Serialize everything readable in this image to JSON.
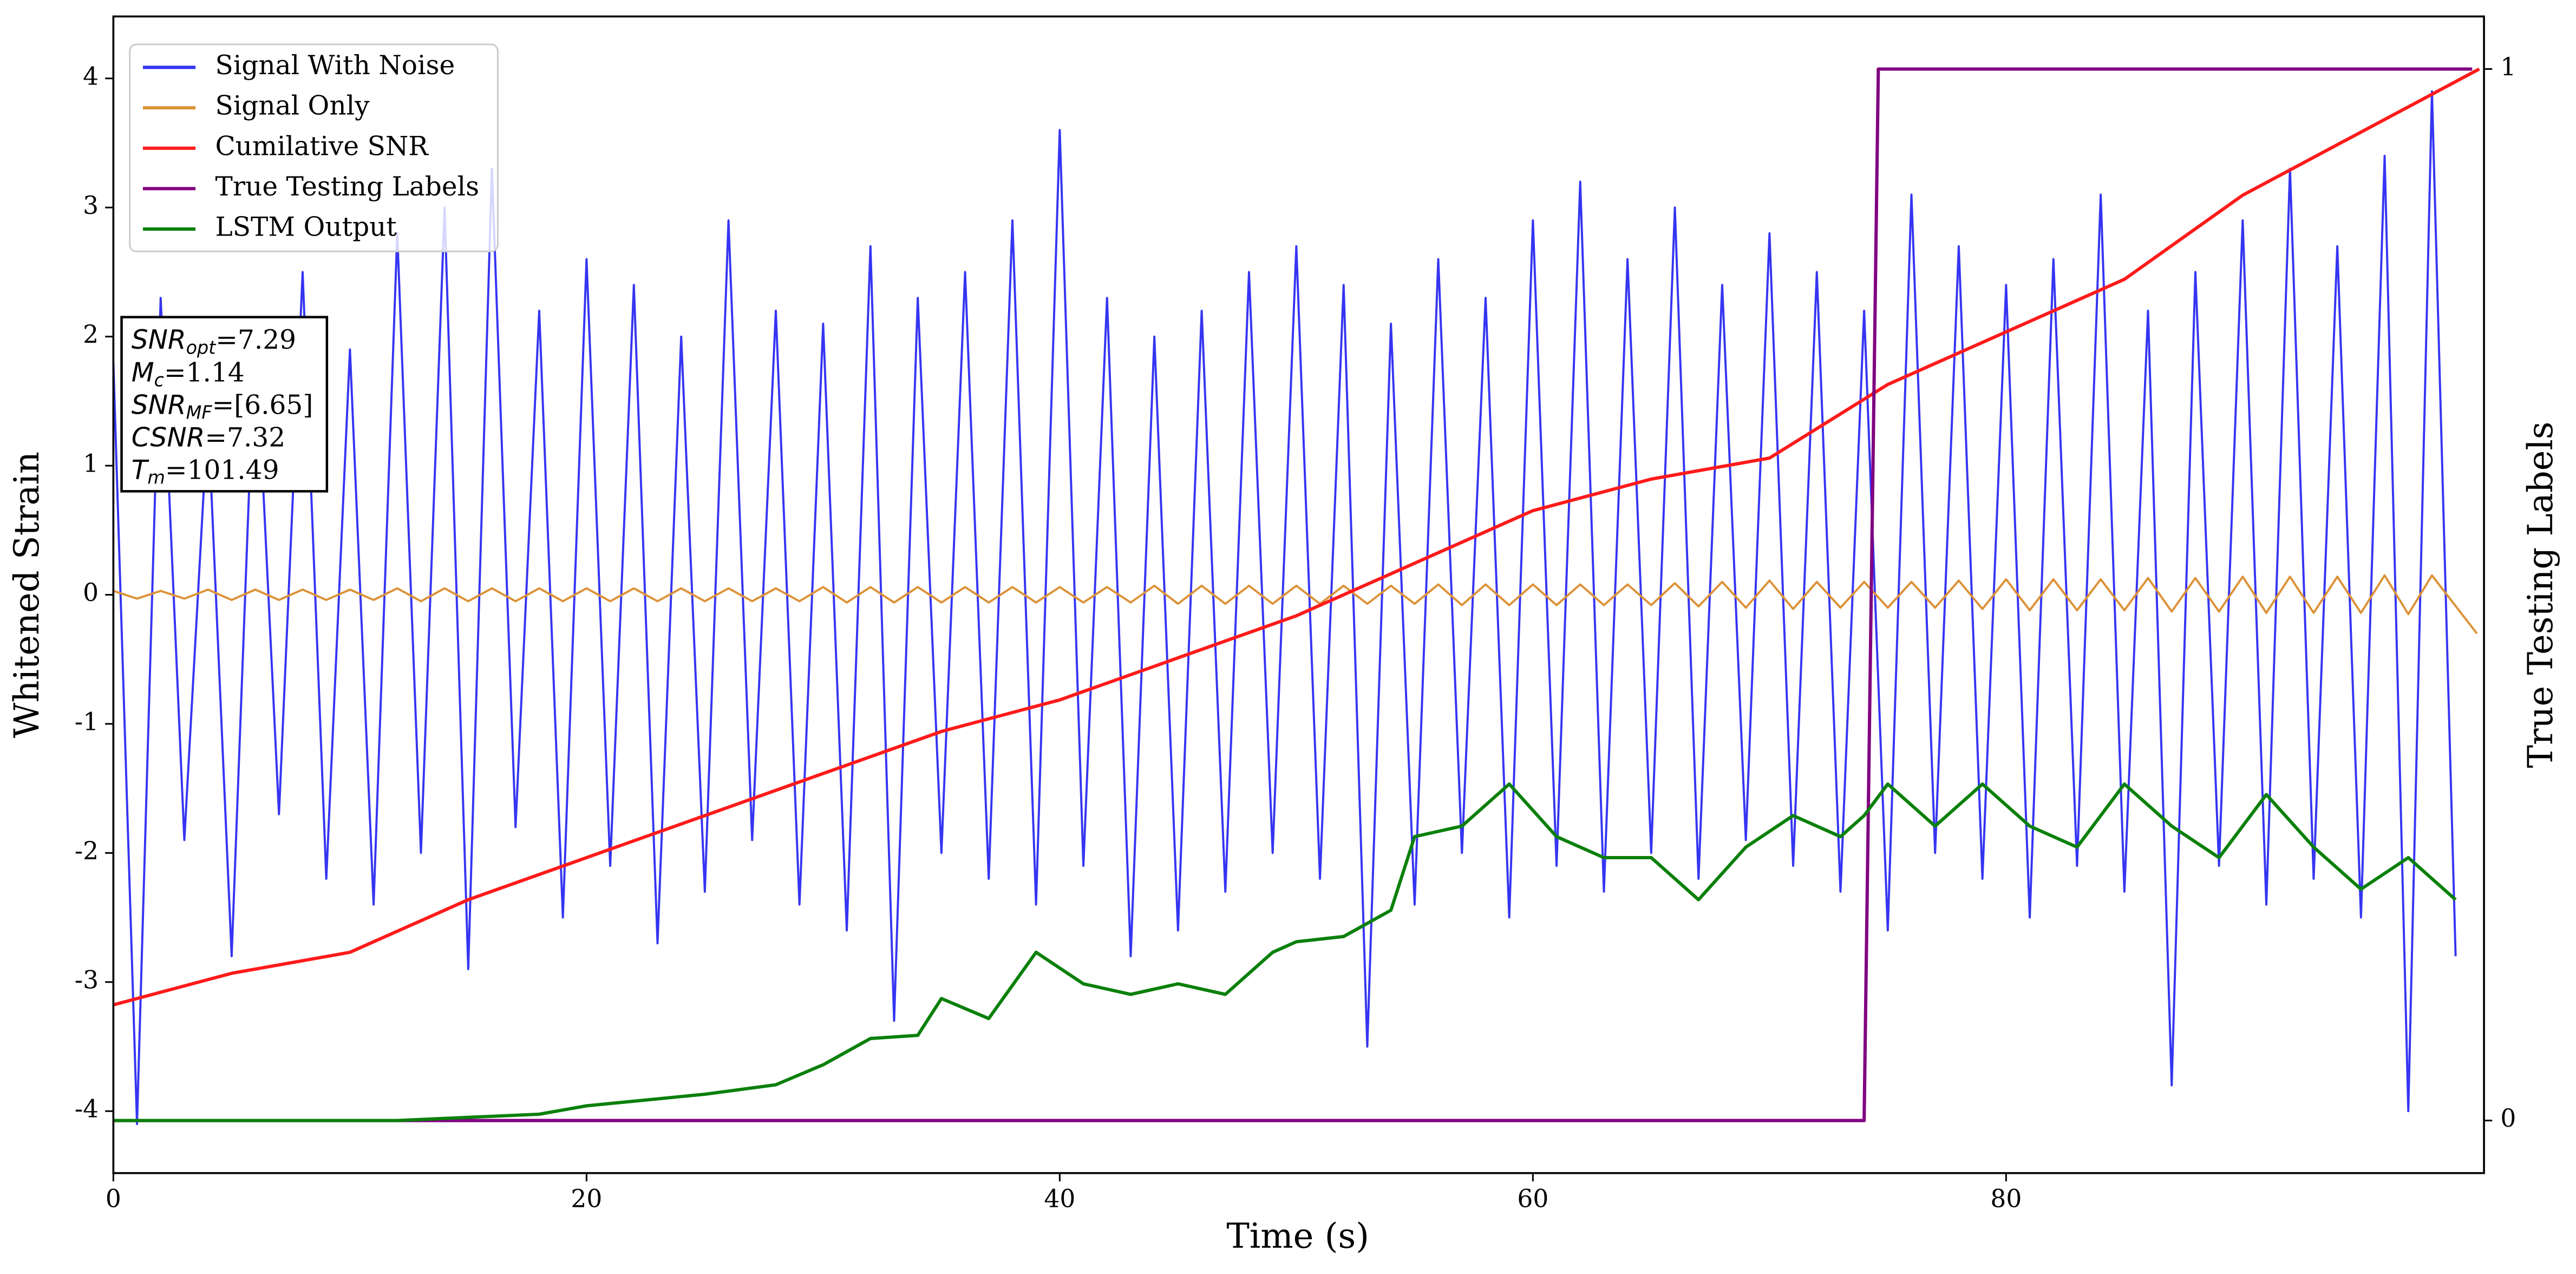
{
  "chart_data": {
    "type": "line",
    "xlabel": "Time (s)",
    "ylabel": "Whitened Strain",
    "y2label": "True Testing Labels",
    "xlim": [
      0,
      100.2
    ],
    "ylim": [
      -4.48,
      4.48
    ],
    "y2lim": [
      -0.05,
      1.05
    ],
    "xticks": [
      0,
      20,
      40,
      60,
      80
    ],
    "yticks": [
      -4,
      -3,
      -2,
      -1,
      0,
      1,
      2,
      3,
      4
    ],
    "y2ticks": [
      0,
      1
    ],
    "legend": "upper left",
    "annotation": [
      {
        "main": "SNR",
        "sub": "opt",
        "rest": "=7.29"
      },
      {
        "main": "M",
        "sub": "c",
        "rest": "=1.14"
      },
      {
        "main": "SNR",
        "sub": "MF",
        "rest": "=[6.65]"
      },
      {
        "main": "CSNR",
        "rest": "=7.32"
      },
      {
        "main": "T",
        "sub": "m",
        "rest": "=101.49"
      }
    ],
    "series": [
      {
        "name": "Signal With Noise",
        "color": "#3535f2",
        "x": [
          0,
          1,
          2,
          3,
          4,
          5,
          6,
          7,
          8,
          9,
          10,
          11,
          12,
          13,
          14,
          15,
          16,
          17,
          18,
          19,
          20,
          21,
          22,
          23,
          24,
          25,
          26,
          27,
          28,
          29,
          30,
          31,
          32,
          33,
          34,
          35,
          36,
          37,
          38,
          39,
          40,
          41,
          42,
          43,
          44,
          45,
          46,
          47,
          48,
          49,
          50,
          51,
          52,
          53,
          54,
          55,
          56,
          57,
          58,
          59,
          60,
          61,
          62,
          63,
          64,
          65,
          66,
          67,
          68,
          69,
          70,
          71,
          72,
          73,
          74,
          75,
          76,
          77,
          78,
          79,
          80,
          81,
          82,
          83,
          84,
          85,
          86,
          87,
          88,
          89,
          90,
          91,
          92,
          93,
          94,
          95,
          96,
          97,
          98,
          99
        ],
        "values": [
          1.8,
          -4.1,
          2.3,
          -1.9,
          1.4,
          -2.8,
          2.1,
          -1.7,
          2.5,
          -2.2,
          1.9,
          -2.4,
          2.8,
          -2.0,
          3.0,
          -2.9,
          3.3,
          -1.8,
          2.2,
          -2.5,
          2.6,
          -2.1,
          2.4,
          -2.7,
          2.0,
          -2.3,
          2.9,
          -1.9,
          2.2,
          -2.4,
          2.1,
          -2.6,
          2.7,
          -3.3,
          2.3,
          -2.0,
          2.5,
          -2.2,
          2.9,
          -2.4,
          3.6,
          -2.1,
          2.3,
          -2.8,
          2.0,
          -2.6,
          2.2,
          -2.3,
          2.5,
          -2.0,
          2.7,
          -2.2,
          2.4,
          -3.5,
          2.1,
          -2.4,
          2.6,
          -2.0,
          2.3,
          -2.5,
          2.9,
          -2.1,
          3.2,
          -2.3,
          2.6,
          -2.0,
          3.0,
          -2.2,
          2.4,
          -1.9,
          2.8,
          -2.1,
          2.5,
          -2.3,
          2.2,
          -2.6,
          3.1,
          -2.0,
          2.7,
          -2.2,
          2.4,
          -2.5,
          2.6,
          -2.1,
          3.1,
          -2.3,
          2.2,
          -3.8,
          2.5,
          -2.1,
          2.9,
          -2.4,
          3.3,
          -2.2,
          2.7,
          -2.5,
          3.4,
          -4.0,
          3.9,
          -2.8
        ]
      },
      {
        "name": "Signal Only",
        "color": "#dc9238",
        "x": [
          0,
          1,
          2,
          3,
          4,
          5,
          6,
          7,
          8,
          9,
          10,
          11,
          12,
          13,
          14,
          15,
          16,
          17,
          18,
          19,
          20,
          21,
          22,
          23,
          24,
          25,
          26,
          27,
          28,
          29,
          30,
          31,
          32,
          33,
          34,
          35,
          36,
          37,
          38,
          39,
          40,
          41,
          42,
          43,
          44,
          45,
          46,
          47,
          48,
          49,
          50,
          51,
          52,
          53,
          54,
          55,
          56,
          57,
          58,
          59,
          60,
          61,
          62,
          63,
          64,
          65,
          66,
          67,
          68,
          69,
          70,
          71,
          72,
          73,
          74,
          75,
          76,
          77,
          78,
          79,
          80,
          81,
          82,
          83,
          84,
          85,
          86,
          87,
          88,
          89,
          90,
          91,
          92,
          93,
          94,
          95,
          96,
          97,
          98,
          99.9
        ],
        "values": [
          0.03,
          -0.03,
          0.03,
          -0.03,
          0.04,
          -0.04,
          0.04,
          -0.04,
          0.04,
          -0.04,
          0.04,
          -0.04,
          0.05,
          -0.05,
          0.05,
          -0.05,
          0.05,
          -0.05,
          0.05,
          -0.05,
          0.05,
          -0.05,
          0.05,
          -0.05,
          0.05,
          -0.05,
          0.05,
          -0.05,
          0.05,
          -0.05,
          0.06,
          -0.06,
          0.06,
          -0.06,
          0.06,
          -0.06,
          0.06,
          -0.06,
          0.06,
          -0.06,
          0.06,
          -0.06,
          0.06,
          -0.06,
          0.07,
          -0.07,
          0.07,
          -0.07,
          0.07,
          -0.07,
          0.07,
          -0.07,
          0.07,
          -0.07,
          0.07,
          -0.07,
          0.08,
          -0.08,
          0.08,
          -0.08,
          0.08,
          -0.08,
          0.08,
          -0.08,
          0.08,
          -0.08,
          0.09,
          -0.09,
          0.1,
          -0.1,
          0.11,
          -0.11,
          0.1,
          -0.1,
          0.1,
          -0.1,
          0.1,
          -0.1,
          0.11,
          -0.11,
          0.12,
          -0.12,
          0.12,
          -0.12,
          0.12,
          -0.12,
          0.13,
          -0.13,
          0.13,
          -0.13,
          0.14,
          -0.14,
          0.14,
          -0.14,
          0.14,
          -0.14,
          0.15,
          -0.15,
          0.15,
          -0.3
        ]
      },
      {
        "name": "Cumilative SNR",
        "color": "#ff1a1a",
        "axis": "y2",
        "x": [
          0,
          5,
          10,
          15,
          20,
          25,
          30,
          35,
          40,
          45,
          50,
          55,
          60,
          65,
          70,
          75,
          80,
          85,
          90,
          95,
          100
        ],
        "values": [
          0.11,
          0.14,
          0.16,
          0.21,
          0.25,
          0.29,
          0.33,
          0.37,
          0.4,
          0.44,
          0.48,
          0.53,
          0.58,
          0.61,
          0.63,
          0.7,
          0.75,
          0.8,
          0.88,
          0.94,
          1.0
        ]
      },
      {
        "name": "True Testing Labels",
        "color": "#800080",
        "axis": "y2",
        "x": [
          0,
          74.0,
          74.6,
          99.7
        ],
        "values": [
          0,
          0,
          1,
          1
        ]
      },
      {
        "name": "LSTM Output",
        "color": "#0a800a",
        "axis": "y2",
        "x": [
          0,
          12,
          15,
          18,
          20,
          25,
          28,
          30,
          32,
          34,
          35,
          37,
          39,
          41,
          43,
          45,
          47,
          49,
          50,
          52,
          54,
          55,
          57,
          59,
          61,
          63,
          65,
          67,
          69,
          71,
          73,
          74,
          75,
          77,
          79,
          81,
          83,
          85,
          87,
          89,
          91,
          93,
          95,
          97,
          99
        ],
        "values": [
          0,
          0,
          0.003,
          0.006,
          0.014,
          0.025,
          0.034,
          0.053,
          0.078,
          0.081,
          0.116,
          0.097,
          0.16,
          0.13,
          0.12,
          0.13,
          0.12,
          0.16,
          0.17,
          0.175,
          0.2,
          0.27,
          0.28,
          0.32,
          0.27,
          0.25,
          0.25,
          0.21,
          0.26,
          0.29,
          0.27,
          0.29,
          0.32,
          0.28,
          0.32,
          0.28,
          0.26,
          0.32,
          0.28,
          0.25,
          0.31,
          0.26,
          0.22,
          0.25,
          0.21
        ]
      }
    ]
  }
}
